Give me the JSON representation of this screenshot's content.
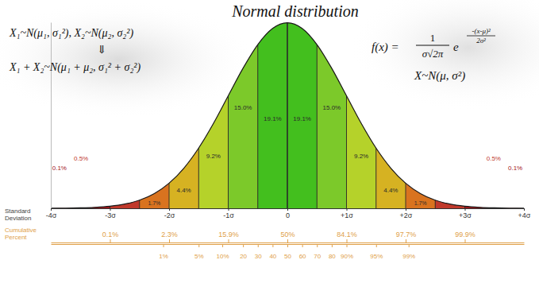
{
  "chart_data": {
    "type": "area",
    "title": "Normal distribution",
    "x": [
      -4,
      -3.75,
      -3.5,
      -3.25,
      -3,
      -2.75,
      -2.5,
      -2.25,
      -2,
      -1.75,
      -1.5,
      -1.25,
      -1,
      -0.75,
      -0.5,
      -0.25,
      0,
      0.25,
      0.5,
      0.75,
      1,
      1.25,
      1.5,
      1.75,
      2,
      2.25,
      2.5,
      2.75,
      3,
      3.25,
      3.5,
      3.75,
      4
    ],
    "values": [
      0.0001,
      0.0004,
      0.0009,
      0.002,
      0.0044,
      0.0091,
      0.0175,
      0.0317,
      0.054,
      0.0863,
      0.1295,
      0.1826,
      0.242,
      0.3011,
      0.3521,
      0.3867,
      0.3989,
      0.3867,
      0.3521,
      0.3011,
      0.242,
      0.1826,
      0.1295,
      0.0863,
      0.054,
      0.0317,
      0.0175,
      0.0091,
      0.0044,
      0.002,
      0.0009,
      0.0004,
      0.0001
    ],
    "color": "#8e1010",
    "xlim": [
      -4,
      4
    ],
    "ylim": [
      0,
      0.4
    ],
    "xticks": [
      {
        "value": -4,
        "label": "-4σ"
      },
      {
        "value": -3,
        "label": "-3σ"
      },
      {
        "value": -2,
        "label": "-2σ"
      },
      {
        "value": -1,
        "label": "-1σ"
      },
      0,
      {
        "value": 1,
        "label": "+1σ"
      },
      {
        "value": 2,
        "label": "+2σ"
      },
      {
        "value": 3,
        "label": "+3σ"
      },
      {
        "value": 4,
        "label": "+4σ"
      }
    ],
    "xlabel": [
      "Standard",
      "Deviation"
    ],
    "tick_labels": "x",
    "data_labels": true,
    "segments": {
      "edges": [
        -3.5,
        -3,
        -2.5,
        -2,
        -1.5,
        -1,
        -0.5,
        0,
        0.5,
        1,
        1.5,
        2,
        2.5,
        3,
        3.5
      ],
      "values": [
        0.1,
        0.5,
        1.7,
        4.4,
        9.2,
        15.0,
        19.1,
        19.1,
        15.0,
        9.2,
        4.4,
        1.7,
        0.5,
        0.1
      ],
      "value_labels": [
        "0.1%",
        "0.5%",
        "1.7%",
        "4.4%",
        "9.2%",
        "15.0%",
        "19.1%",
        "19.1%",
        "15.0%",
        "9.2%",
        "4.4%",
        "1.7%",
        "0.5%",
        "0.1%"
      ],
      "colors": [
        "#a3161a",
        "#c0392b",
        "#d9731f",
        "#d6b222",
        "#b5d22a",
        "#7cc92a",
        "#43bf1e",
        "#43bf1e",
        "#7cc92a",
        "#b5d22a",
        "#d6b222",
        "#d9731f",
        "#c0392b",
        "#a3161a"
      ]
    },
    "cumulative": {
      "label": [
        "Cumulative",
        "Percent"
      ],
      "ticks": [
        {
          "value": -3,
          "label": "0.1%"
        },
        {
          "value": -2,
          "label": "2.3%"
        },
        {
          "value": -1,
          "label": "15.9%"
        },
        {
          "value": 0,
          "label": "50%"
        },
        {
          "value": 1,
          "label": "84.1%"
        },
        {
          "value": 2,
          "label": "97.7%"
        },
        {
          "value": 3,
          "label": "99.9%"
        }
      ]
    },
    "percentiles": {
      "ticks": [
        {
          "value": -2.1,
          "label": "1%"
        },
        {
          "value": -1.5,
          "label": "5%"
        },
        {
          "value": -1.1,
          "label": "10%"
        },
        {
          "value": -0.75,
          "label": "20"
        },
        {
          "value": -0.5,
          "label": "30"
        },
        {
          "value": -0.25,
          "label": "40"
        },
        {
          "value": 0,
          "label": "50"
        },
        {
          "value": 0.25,
          "label": "60"
        },
        {
          "value": 0.5,
          "label": "70"
        },
        {
          "value": 0.75,
          "label": "80"
        },
        {
          "value": 1.0,
          "label": "90%"
        },
        {
          "value": 1.5,
          "label": "95%"
        },
        {
          "value": 2.05,
          "label": "99%"
        }
      ]
    },
    "annotations": {
      "sum_rule": [
        "X₁~N(μ₁, σ₁²), X₂~N(μ₂, σ₂²)",
        "⇓",
        "X₁ + X₂~N(μ₁ + μ₂, σ₁² + σ₂²)"
      ],
      "density": {
        "lhs": "f(x) =",
        "numerator": "1",
        "denominator": "σ√2π",
        "base": "e",
        "exponent_numerator": "-(x-μ)²",
        "exponent_denominator": "2σ²"
      },
      "notation": "X~N(μ, σ²)"
    }
  }
}
